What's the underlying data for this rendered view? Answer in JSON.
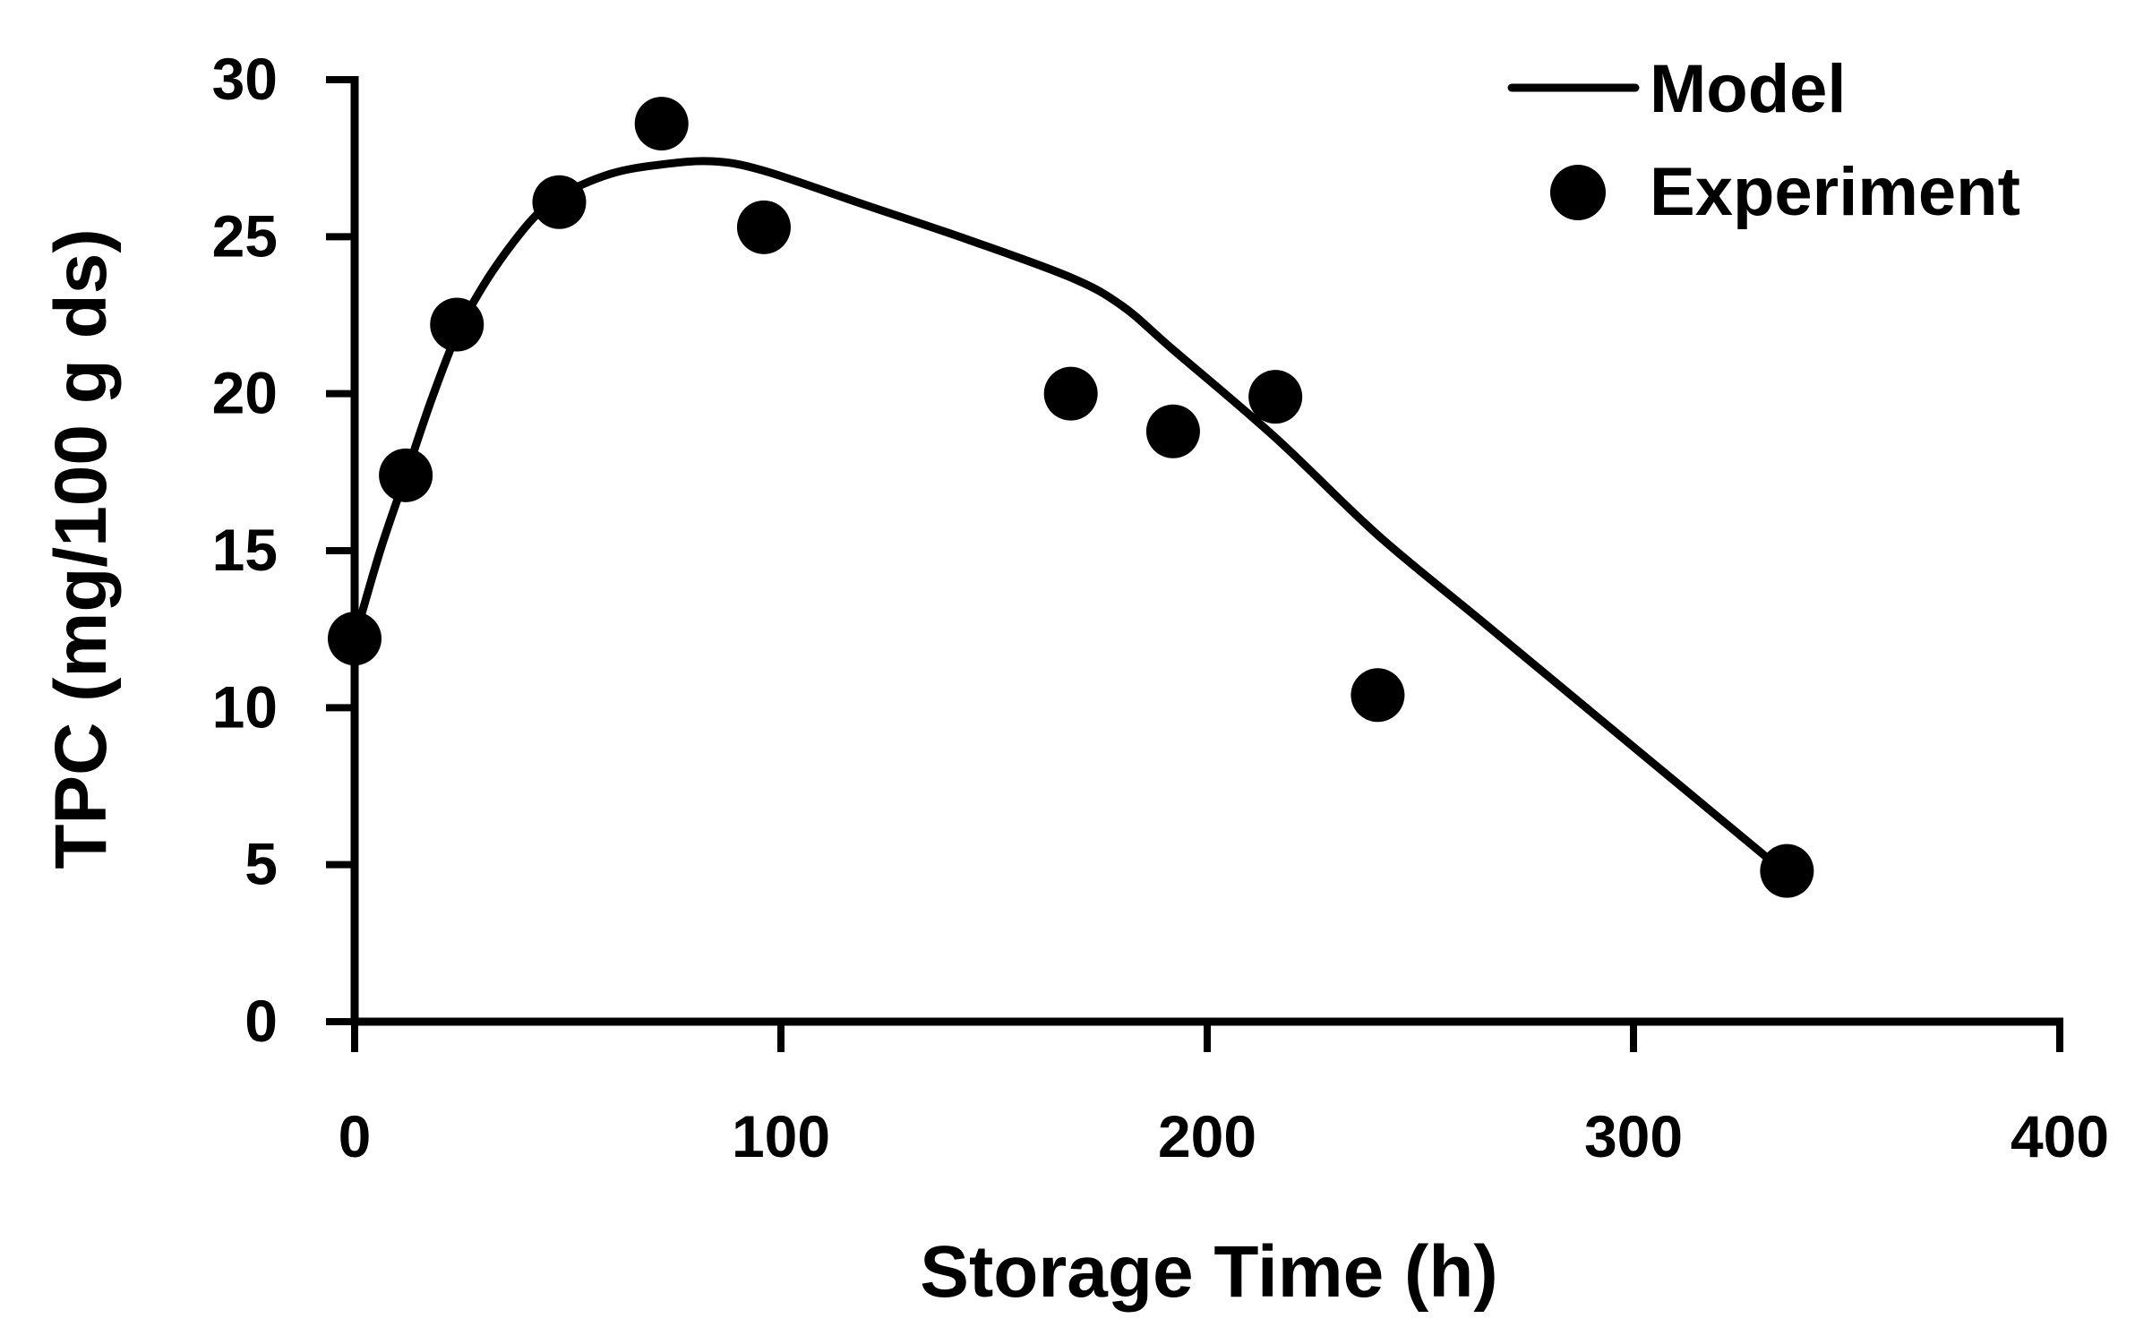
{
  "chart_data": {
    "type": "scatter",
    "title": "",
    "xlabel": "Storage Time (h)",
    "ylabel": "TPC (mg/100 g ds)",
    "xlim": [
      0,
      400
    ],
    "ylim": [
      0,
      30
    ],
    "x_ticks": [
      0,
      100,
      200,
      300,
      400
    ],
    "y_ticks": [
      0,
      5,
      10,
      15,
      20,
      25,
      30
    ],
    "x_tick_labels": [
      "0",
      "100",
      "200",
      "300",
      "400"
    ],
    "y_tick_labels": [
      "0",
      "5",
      "10",
      "15",
      "20",
      "25",
      "30"
    ],
    "grid": false,
    "legend_position": "top-right",
    "series": [
      {
        "name": "Model",
        "kind": "line",
        "color": "#000000",
        "x": [
          0,
          6,
          12,
          18,
          24,
          30,
          36,
          42,
          48,
          60,
          72,
          84,
          96,
          120,
          144,
          168,
          180,
          192,
          216,
          240,
          264,
          288,
          312,
          336
        ],
        "y": [
          12.2,
          15.0,
          17.4,
          19.8,
          21.9,
          23.4,
          24.6,
          25.6,
          26.3,
          27.0,
          27.3,
          27.4,
          27.1,
          26.0,
          24.9,
          23.7,
          22.8,
          21.4,
          18.6,
          15.5,
          12.8,
          10.1,
          7.4,
          4.7
        ]
      },
      {
        "name": "Experiment",
        "kind": "scatter",
        "color": "#000000",
        "x": [
          0,
          12,
          24,
          48,
          72,
          96,
          168,
          192,
          216,
          240,
          336
        ],
        "y": [
          12.2,
          17.4,
          22.2,
          26.1,
          28.6,
          25.3,
          20.0,
          18.8,
          19.9,
          10.4,
          4.8
        ]
      }
    ]
  }
}
